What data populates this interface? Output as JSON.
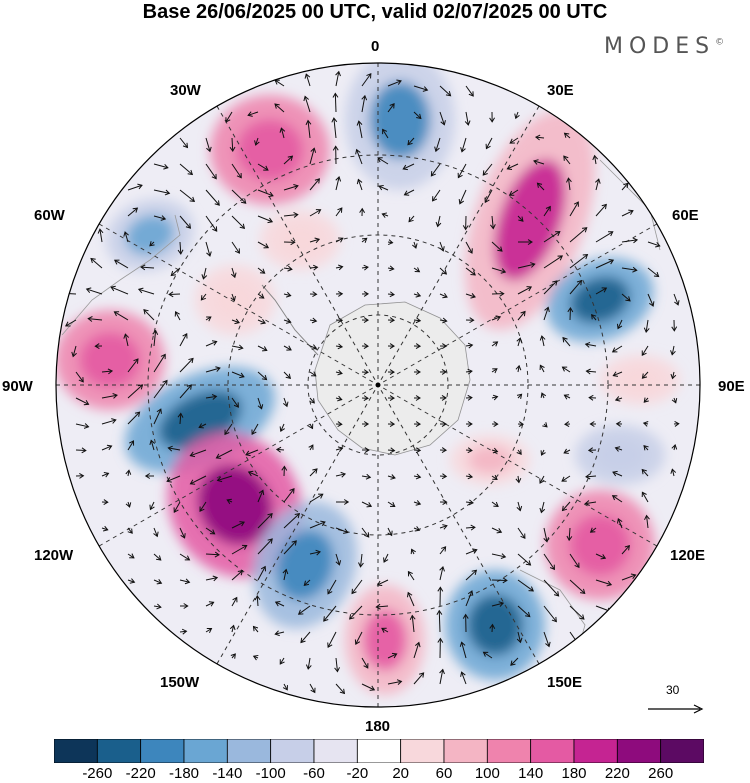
{
  "title": "Base 26/06/2025 00 UTC, valid 02/07/2025 00 UTC",
  "brand": "MODES",
  "brand_mark": "©",
  "longitude_labels": {
    "lon_0": "0",
    "lon_30e": "30E",
    "lon_60e": "60E",
    "lon_90e": "90E",
    "lon_120e": "120E",
    "lon_150e": "150E",
    "lon_180": "180",
    "lon_150w": "150W",
    "lon_120w": "120W",
    "lon_90w": "90W",
    "lon_60w": "60W",
    "lon_30w": "30W"
  },
  "reference_vector": "30",
  "colorbar": {
    "ticks": [
      "-260",
      "-220",
      "-180",
      "-140",
      "-100",
      "-60",
      "-20",
      "20",
      "60",
      "100",
      "140",
      "180",
      "220",
      "260"
    ],
    "colors": [
      "#0d3559",
      "#1a5f8c",
      "#3d86bd",
      "#6aa6d3",
      "#9ab8dd",
      "#c7cfe8",
      "#e6e4f1",
      "#ffffff",
      "#f8d8dc",
      "#f4b5c4",
      "#ef83ad",
      "#e45aa3",
      "#c52492",
      "#8e0b7d",
      "#5c0a63"
    ]
  },
  "colors": {
    "land": "#ececec",
    "coast": "#888888",
    "grid": "#333333",
    "arrow": "#111111"
  }
}
